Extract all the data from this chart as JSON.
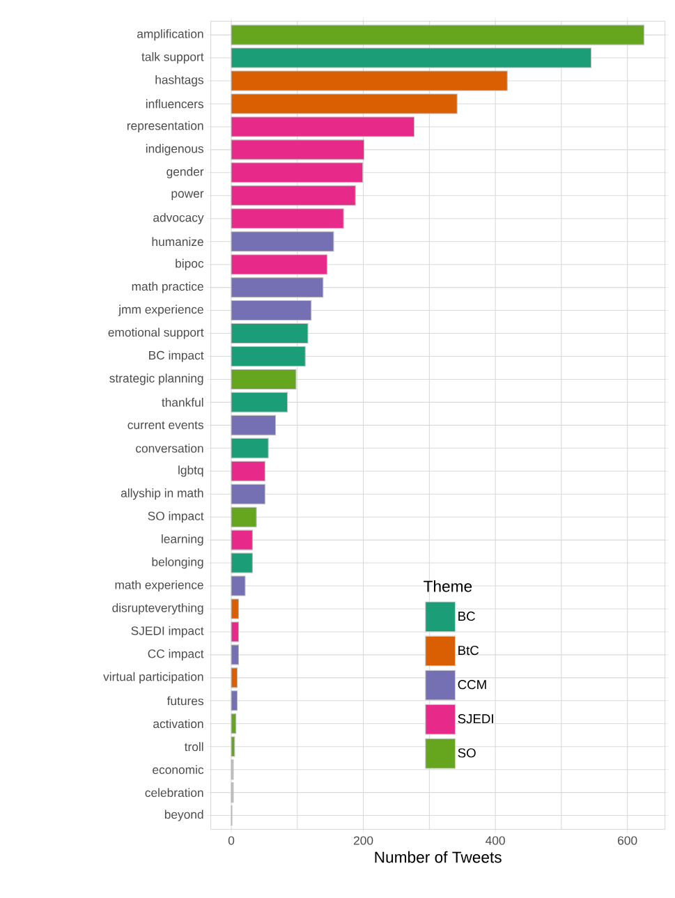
{
  "chart_data": {
    "type": "bar",
    "orientation": "horizontal",
    "xlabel": "Number of Tweets",
    "legend_title": "Theme",
    "legend": "bottom",
    "grid": true,
    "categories": [
      "amplification",
      "talk support",
      "hashtags",
      "influencers",
      "representation",
      "indigenous",
      "gender",
      "power",
      "advocacy",
      "humanize",
      "bipoc",
      "math practice",
      "jmm experience",
      "emotional support",
      "BC impact",
      "strategic planning",
      "thankful",
      "current events",
      "conversation",
      "lgbtq",
      "allyship in math",
      "SO impact",
      "learning",
      "belonging",
      "math experience",
      "disrupteverything",
      "SJEDI impact",
      "CC impact",
      "virtual participation",
      "futures",
      "activation",
      "troll",
      "economic",
      "celebration",
      "beyond"
    ],
    "series": [
      {
        "name": "BC",
        "color": "#1b9e77",
        "values": [
          null,
          545,
          null,
          null,
          null,
          null,
          null,
          null,
          null,
          null,
          null,
          null,
          null,
          116,
          112,
          null,
          85,
          null,
          56,
          null,
          null,
          null,
          null,
          32,
          null,
          null,
          null,
          null,
          null,
          null,
          null,
          null,
          null,
          null,
          null
        ]
      },
      {
        "name": "BtC",
        "color": "#d95f02",
        "values": [
          null,
          null,
          418,
          342,
          null,
          null,
          null,
          null,
          null,
          null,
          null,
          null,
          null,
          null,
          null,
          null,
          null,
          null,
          null,
          null,
          null,
          null,
          null,
          null,
          null,
          11,
          null,
          null,
          9,
          null,
          null,
          null,
          null,
          null,
          null
        ]
      },
      {
        "name": "CCM",
        "color": "#7570b3",
        "values": [
          null,
          null,
          null,
          null,
          null,
          null,
          null,
          null,
          null,
          155,
          null,
          139,
          121,
          null,
          null,
          null,
          null,
          67,
          null,
          null,
          51,
          null,
          null,
          null,
          21,
          null,
          null,
          11,
          null,
          9,
          null,
          null,
          null,
          null,
          null
        ]
      },
      {
        "name": "SJEDI",
        "color": "#e7298a",
        "values": [
          null,
          null,
          null,
          null,
          277,
          201,
          199,
          188,
          170,
          null,
          145,
          null,
          null,
          null,
          null,
          null,
          null,
          null,
          null,
          51,
          null,
          null,
          32,
          null,
          null,
          null,
          11,
          null,
          null,
          null,
          null,
          null,
          null,
          null,
          null
        ]
      },
      {
        "name": "SO",
        "color": "#66a61e",
        "values": [
          625,
          null,
          null,
          null,
          null,
          null,
          null,
          null,
          null,
          null,
          null,
          null,
          null,
          null,
          null,
          98,
          null,
          null,
          null,
          null,
          null,
          38,
          null,
          null,
          null,
          null,
          null,
          null,
          null,
          null,
          7,
          5,
          null,
          null,
          null
        ]
      },
      {
        "color": "#bebebe",
        "values": [
          null,
          null,
          null,
          null,
          null,
          null,
          null,
          null,
          null,
          null,
          null,
          null,
          null,
          null,
          null,
          null,
          null,
          null,
          null,
          null,
          null,
          null,
          null,
          null,
          null,
          null,
          null,
          null,
          null,
          null,
          null,
          null,
          3,
          3,
          1
        ]
      }
    ],
    "xlim": [
      -31,
      657
    ],
    "xticks": [
      0,
      200,
      400,
      600
    ]
  }
}
